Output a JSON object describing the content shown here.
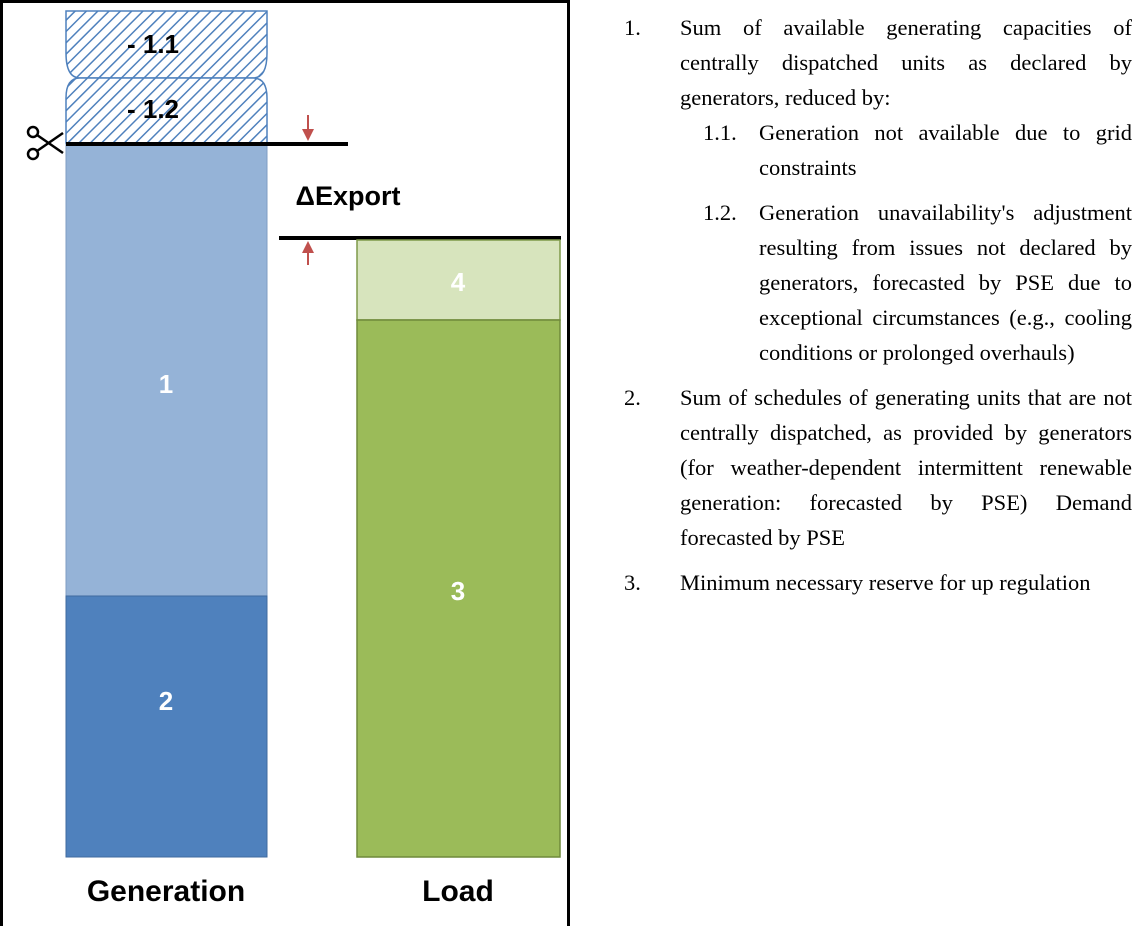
{
  "diagram": {
    "generation_label": "Generation",
    "load_label": "Load",
    "delta_label": "ΔExport",
    "segments": {
      "minus_1_1": "- 1.1",
      "minus_1_2": "- 1.2",
      "block_1": "1",
      "block_2": "2",
      "block_3": "3",
      "block_4": "4"
    },
    "icons": [
      "scissors-icon",
      "down-arrow-icon",
      "up-arrow-icon"
    ],
    "colors": {
      "block_1": "#95b3d7",
      "block_2": "#4f81bd",
      "block_3": "#9bbb59",
      "block_4": "#d7e4bd",
      "arrow": "#c0504d",
      "hatch": "#4f81bd"
    }
  },
  "legend": {
    "items": [
      {
        "num": "1.",
        "text": "Sum of available generating capacities of centrally dispatched units as declared by generators, reduced by:",
        "sub": [
          {
            "num": "1.1.",
            "text": "Generation not available due to grid constraints"
          },
          {
            "num": "1.2.",
            "text": "Generation unavailability's adjustment resulting from issues not declared by generators, forecasted by PSE due to exceptional circumstances (e.g., cooling conditions or prolonged overhauls)"
          }
        ]
      },
      {
        "num": "2.",
        "text": "Sum of schedules of generating units that are not centrally dispatched, as provided by generators (for weather-dependent intermittent renewable generation: forecasted by PSE) Demand forecasted by PSE"
      },
      {
        "num": "3.",
        "text": "Minimum necessary reserve for up regulation"
      }
    ]
  }
}
